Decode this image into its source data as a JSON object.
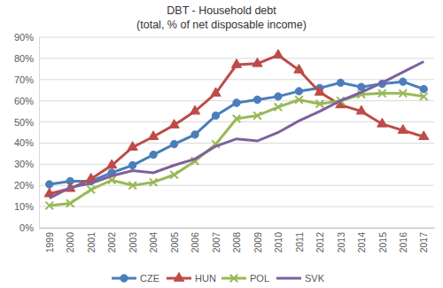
{
  "chart_data": {
    "type": "line",
    "title": "DBT - Household debt",
    "subtitle": "(total, % of net disposable income)",
    "categories": [
      "1999",
      "2000",
      "2001",
      "2002",
      "2003",
      "2004",
      "2005",
      "2006",
      "2007",
      "2008",
      "2009",
      "2010",
      "2011",
      "2012",
      "2013",
      "2014",
      "2015",
      "2016",
      "2017"
    ],
    "series": [
      {
        "name": "CZE",
        "color": "#4a7ebb",
        "marker": "circle",
        "values": [
          20.5,
          22,
          22,
          26,
          29.5,
          34.5,
          39.5,
          44,
          53,
          59,
          60.5,
          62,
          64.5,
          66,
          68.5,
          66.5,
          68,
          69,
          65.5
        ]
      },
      {
        "name": "HUN",
        "color": "#be4b48",
        "marker": "triangle",
        "values": [
          16,
          18.5,
          23,
          29.5,
          38,
          43,
          48.5,
          55,
          63.5,
          77,
          77.5,
          81.5,
          74.5,
          64,
          58,
          55,
          49,
          46,
          43
        ]
      },
      {
        "name": "POL",
        "color": "#98b954",
        "marker": "x",
        "values": [
          10.5,
          11.5,
          18,
          22.5,
          20,
          21.5,
          25,
          31.5,
          39.5,
          51.5,
          53,
          57,
          60.5,
          58.5,
          60,
          63,
          63.5,
          63.5,
          62
        ]
      },
      {
        "name": "SVK",
        "color": "#7d60a0",
        "marker": "none",
        "values": [
          14,
          19,
          21,
          24.5,
          27,
          26,
          29.5,
          32.5,
          38.5,
          42,
          41,
          45,
          50.5,
          55,
          60,
          64,
          68.5,
          73.5,
          78.5
        ]
      }
    ],
    "ylim": [
      0,
      90
    ],
    "yticks": [
      {
        "value": 0,
        "label": "0%"
      },
      {
        "value": 10,
        "label": "10%"
      },
      {
        "value": 20,
        "label": "20%"
      },
      {
        "value": 30,
        "label": "30%"
      },
      {
        "value": 40,
        "label": "40%"
      },
      {
        "value": 50,
        "label": "50%"
      },
      {
        "value": 60,
        "label": "60%"
      },
      {
        "value": 70,
        "label": "70%"
      },
      {
        "value": 80,
        "label": "80%"
      },
      {
        "value": 90,
        "label": "90%"
      }
    ],
    "grid": true,
    "legend": "bottom"
  }
}
